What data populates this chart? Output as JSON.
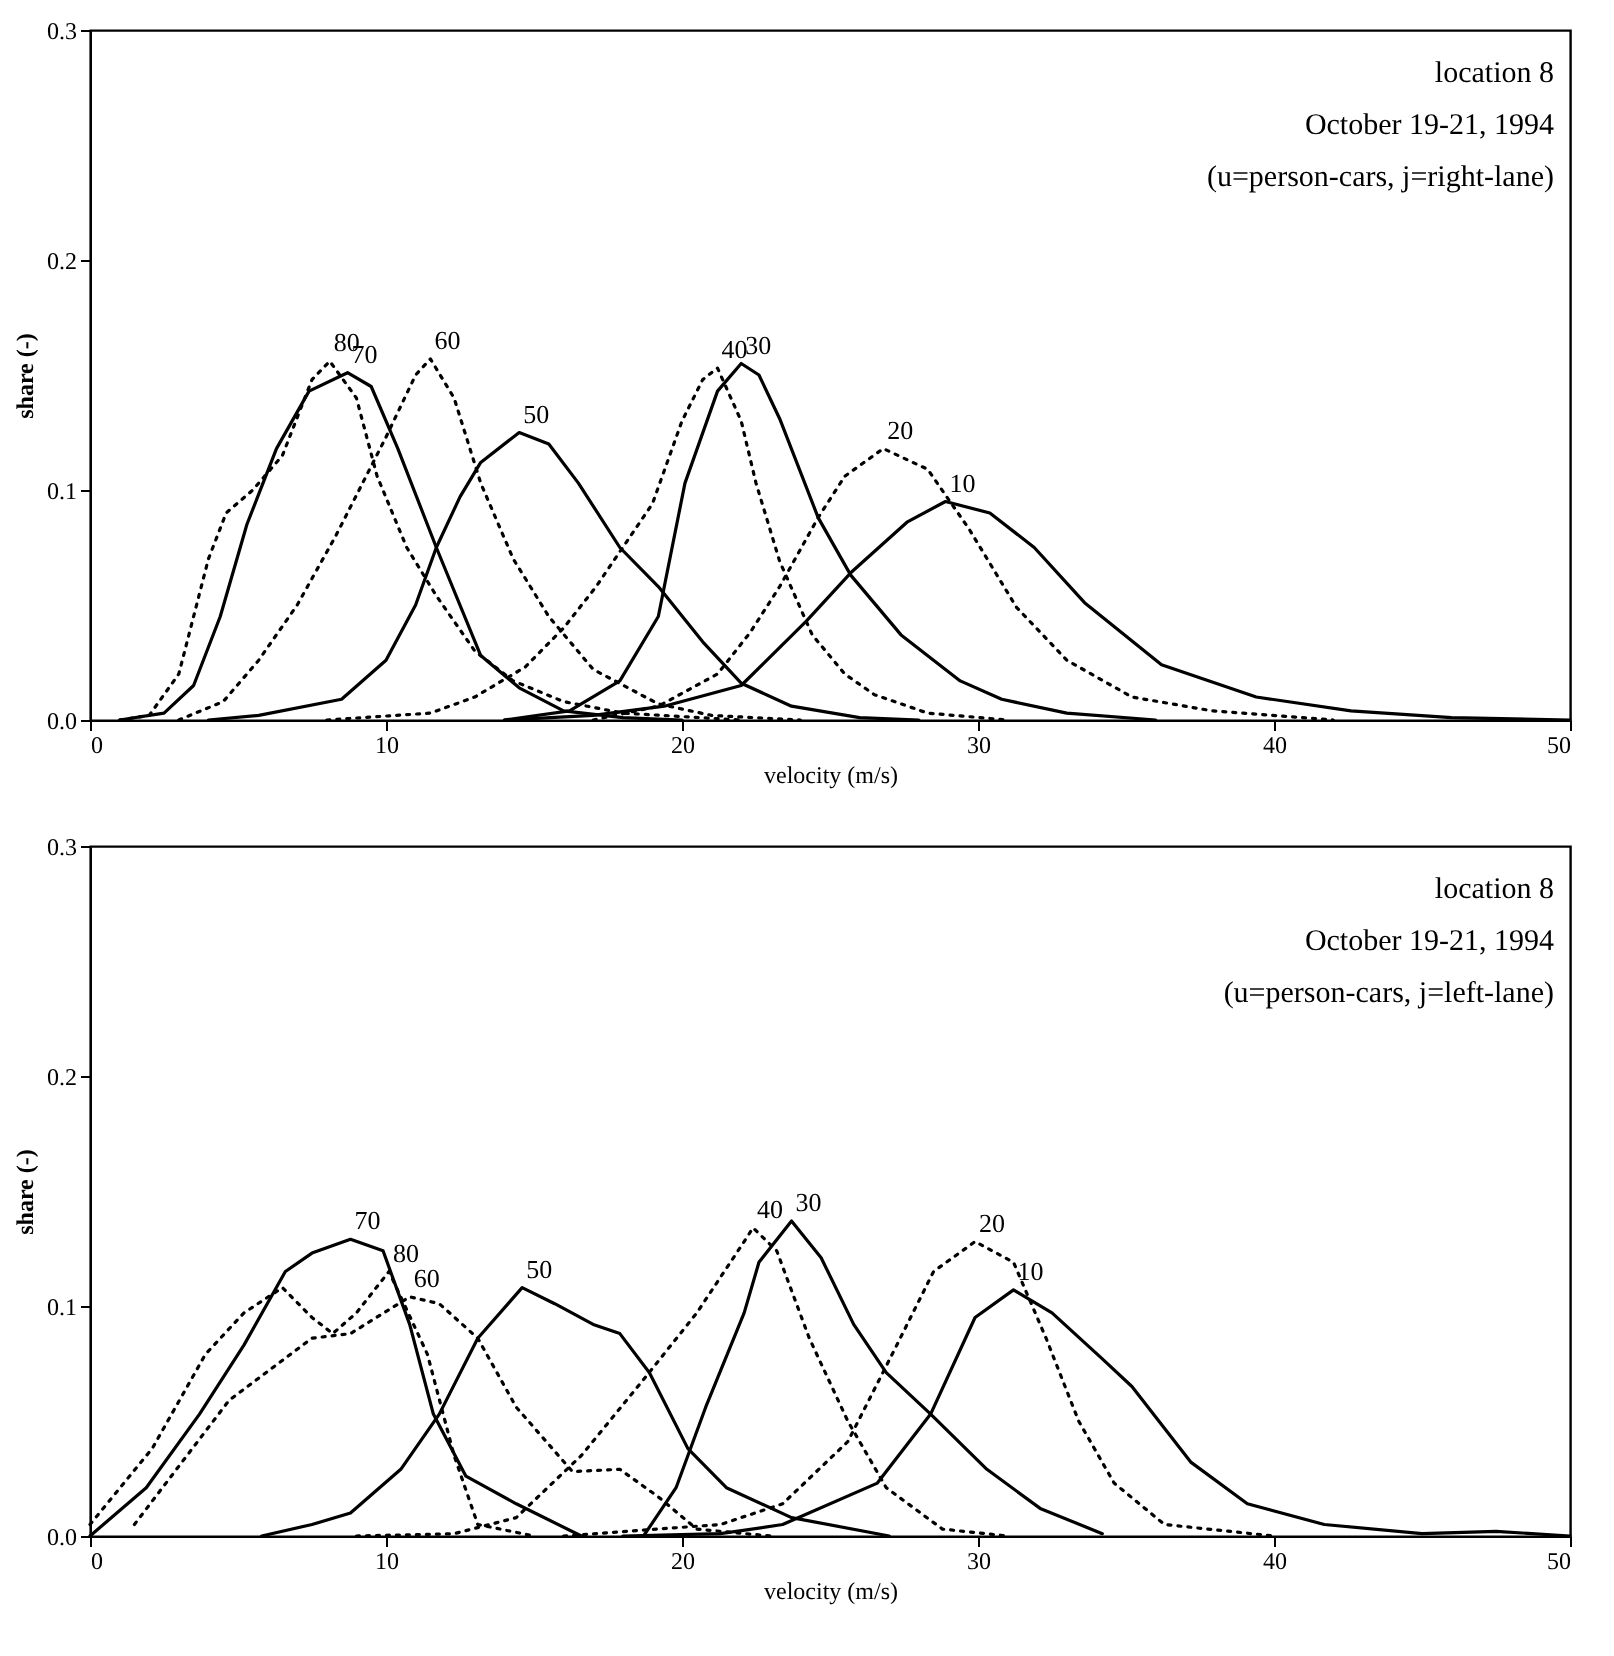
{
  "chart_data": [
    {
      "type": "line",
      "xlabel": "velocity (m/s)",
      "ylabel": "share (-)",
      "annotations": [
        "location 8",
        "October 19-21, 1994",
        "(u=person-cars, j=right-lane)"
      ],
      "xlim": [
        0,
        50
      ],
      "xticks": [
        0,
        10,
        20,
        30,
        40,
        50
      ],
      "ylim": [
        0,
        0.3
      ],
      "yticks": [
        {
          "value": 0,
          "label": "0.0"
        },
        0.1,
        0.2,
        0.3
      ],
      "series": [
        {
          "name": "80",
          "color": "#000000",
          "line_style": "dotted",
          "x": [
            1,
            2,
            3,
            4,
            4.6,
            5.5,
            6.5,
            7.5,
            8.1,
            9,
            9.7,
            10.7,
            11.7,
            13,
            14.3,
            16,
            18,
            22
          ],
          "values": [
            0,
            0.002,
            0.02,
            0.07,
            0.09,
            0.1,
            0.115,
            0.148,
            0.156,
            0.14,
            0.106,
            0.075,
            0.054,
            0.03,
            0.017,
            0.008,
            0.003,
            0
          ]
        },
        {
          "name": "70",
          "color": "#000000",
          "line_style": "solid",
          "x": [
            1,
            2.5,
            3.5,
            4.4,
            5.3,
            6.3,
            7.4,
            8.7,
            9.5,
            10.4,
            11.7,
            13.2,
            14.5,
            16,
            18,
            20
          ],
          "values": [
            0,
            0.003,
            0.015,
            0.045,
            0.085,
            0.118,
            0.143,
            0.151,
            0.145,
            0.118,
            0.075,
            0.028,
            0.014,
            0.004,
            0.001,
            0
          ]
        },
        {
          "name": "60",
          "color": "#000000",
          "line_style": "dotted",
          "x": [
            3,
            4.5,
            5.7,
            7,
            8.3,
            10,
            11,
            11.5,
            12.3,
            13.2,
            14.3,
            15.5,
            17,
            19.2,
            21,
            24
          ],
          "values": [
            0,
            0.008,
            0.026,
            0.05,
            0.08,
            0.123,
            0.15,
            0.157,
            0.14,
            0.103,
            0.07,
            0.045,
            0.022,
            0.007,
            0.002,
            0
          ]
        },
        {
          "name": "50",
          "color": "#000000",
          "line_style": "solid",
          "x": [
            4,
            5.7,
            8.5,
            10,
            11,
            11.7,
            12.5,
            13.2,
            14.5,
            15.5,
            16.5,
            17.9,
            19.2,
            20.7,
            22,
            23.7,
            26,
            28
          ],
          "values": [
            0,
            0.002,
            0.009,
            0.026,
            0.05,
            0.075,
            0.097,
            0.112,
            0.125,
            0.12,
            0.103,
            0.075,
            0.058,
            0.034,
            0.016,
            0.006,
            0.001,
            0
          ]
        },
        {
          "name": "40",
          "color": "#000000",
          "line_style": "dotted",
          "x": [
            8,
            11.5,
            13,
            14.7,
            16,
            17.1,
            19,
            20,
            20.7,
            21.2,
            22,
            22.5,
            23.3,
            24.4,
            25.5,
            26.5,
            28.3,
            31
          ],
          "values": [
            0,
            0.003,
            0.01,
            0.023,
            0.04,
            0.058,
            0.094,
            0.13,
            0.148,
            0.153,
            0.13,
            0.103,
            0.069,
            0.037,
            0.02,
            0.011,
            0.003,
            0
          ]
        },
        {
          "name": "30",
          "color": "#000000",
          "line_style": "solid",
          "x": [
            14,
            16.2,
            17.9,
            19.2,
            20.1,
            21.2,
            22,
            22.6,
            23.3,
            24.6,
            25.7,
            27.4,
            29.4,
            30.8,
            33,
            36
          ],
          "values": [
            0,
            0.004,
            0.017,
            0.045,
            0.103,
            0.143,
            0.155,
            0.15,
            0.131,
            0.088,
            0.063,
            0.037,
            0.017,
            0.009,
            0.003,
            0
          ]
        },
        {
          "name": "20",
          "color": "#000000",
          "line_style": "dotted",
          "x": [
            17,
            19.2,
            21.2,
            22.3,
            23.3,
            24.6,
            25.5,
            26.8,
            28.3,
            29.7,
            31.3,
            33,
            35.2,
            37.9,
            42
          ],
          "values": [
            0,
            0.006,
            0.02,
            0.038,
            0.058,
            0.088,
            0.106,
            0.118,
            0.109,
            0.083,
            0.049,
            0.026,
            0.01,
            0.004,
            0
          ]
        },
        {
          "name": "10",
          "color": "#000000",
          "line_style": "solid",
          "x": [
            14,
            17,
            19.4,
            22,
            24.2,
            25.7,
            27.6,
            28.9,
            30.4,
            31.9,
            33.6,
            36.2,
            39.4,
            42.6,
            46,
            50
          ],
          "values": [
            0,
            0.002,
            0.006,
            0.015,
            0.043,
            0.064,
            0.086,
            0.095,
            0.09,
            0.075,
            0.051,
            0.024,
            0.01,
            0.004,
            0.001,
            0
          ]
        }
      ]
    },
    {
      "type": "line",
      "xlabel": "velocity (m/s)",
      "ylabel": "share (-)",
      "annotations": [
        "location 8",
        "October 19-21, 1994",
        "(u=person-cars, j=left-lane)"
      ],
      "xlim": [
        0,
        50
      ],
      "xticks": [
        0,
        10,
        20,
        30,
        40,
        50
      ],
      "ylim": [
        0,
        0.3
      ],
      "yticks": [
        {
          "value": 0,
          "label": "0.0"
        },
        0.1,
        0.2,
        0.3
      ],
      "series": [
        {
          "name": "70",
          "color": "#000000",
          "line_style": "solid",
          "x": [
            0,
            1.9,
            3.7,
            5.2,
            6.6,
            7.5,
            8.8,
            9.9,
            10.8,
            11.6,
            12.7,
            14.4,
            16.6
          ],
          "values": [
            0,
            0.021,
            0.053,
            0.083,
            0.115,
            0.123,
            0.129,
            0.124,
            0.092,
            0.053,
            0.026,
            0.014,
            0
          ]
        },
        {
          "name": "80",
          "color": "#000000",
          "line_style": "dotted",
          "x": [
            0,
            2.1,
            3.9,
            5.2,
            6.5,
            7.5,
            8.2,
            9,
            10.1,
            11.4,
            12.3,
            13.1,
            15
          ],
          "values": [
            0.005,
            0.038,
            0.079,
            0.097,
            0.108,
            0.095,
            0.088,
            0.097,
            0.115,
            0.079,
            0.035,
            0.005,
            0
          ]
        },
        {
          "name": "60",
          "color": "#000000",
          "line_style": "dotted",
          "x": [
            1.5,
            4.7,
            7.5,
            8.8,
            10.8,
            11.8,
            13.1,
            14.4,
            16.3,
            17.9,
            19.2,
            20.5,
            23
          ],
          "values": [
            0.005,
            0.059,
            0.086,
            0.088,
            0.104,
            0.101,
            0.086,
            0.056,
            0.028,
            0.029,
            0.017,
            0.003,
            0
          ]
        },
        {
          "name": "50",
          "color": "#000000",
          "line_style": "solid",
          "x": [
            5.8,
            7.5,
            8.8,
            10.5,
            11.8,
            13.1,
            14.6,
            15.7,
            17,
            17.9,
            18.9,
            20.2,
            21.5,
            23.7,
            27
          ],
          "values": [
            0,
            0.005,
            0.01,
            0.029,
            0.053,
            0.086,
            0.108,
            0.101,
            0.092,
            0.088,
            0.071,
            0.038,
            0.021,
            0.008,
            0
          ]
        },
        {
          "name": "40",
          "color": "#000000",
          "line_style": "dotted",
          "x": [
            9,
            12.3,
            14.4,
            16.6,
            18.7,
            20.5,
            22.1,
            22.4,
            23.2,
            24.3,
            25.6,
            26.9,
            28.8,
            31
          ],
          "values": [
            0,
            0.001,
            0.008,
            0.035,
            0.068,
            0.097,
            0.128,
            0.134,
            0.124,
            0.086,
            0.05,
            0.021,
            0.003,
            0
          ]
        },
        {
          "name": "30",
          "color": "#000000",
          "line_style": "solid",
          "x": [
            18.7,
            19.8,
            20.8,
            22.1,
            22.6,
            23.7,
            24.7,
            25.8,
            26.9,
            28.4,
            30.3,
            32.1,
            34.2
          ],
          "values": [
            0,
            0.021,
            0.056,
            0.097,
            0.119,
            0.137,
            0.121,
            0.092,
            0.071,
            0.053,
            0.029,
            0.012,
            0.001
          ]
        },
        {
          "name": "20",
          "color": "#000000",
          "line_style": "dotted",
          "x": [
            16,
            21.3,
            23.4,
            25.6,
            27.1,
            28.5,
            29.9,
            31.2,
            32.3,
            33.4,
            34.6,
            36.3,
            40
          ],
          "values": [
            0,
            0.005,
            0.014,
            0.041,
            0.079,
            0.115,
            0.128,
            0.119,
            0.086,
            0.05,
            0.023,
            0.005,
            0
          ]
        },
        {
          "name": "10",
          "color": "#000000",
          "line_style": "solid",
          "x": [
            18,
            21.3,
            23.4,
            26.6,
            28.4,
            29.9,
            31.2,
            32.5,
            34.2,
            35.2,
            37.2,
            39.1,
            41.7,
            45,
            47.5,
            50
          ],
          "values": [
            0,
            0.001,
            0.005,
            0.023,
            0.053,
            0.095,
            0.107,
            0.097,
            0.077,
            0.065,
            0.032,
            0.014,
            0.005,
            0.001,
            0.002,
            0
          ]
        }
      ]
    }
  ]
}
